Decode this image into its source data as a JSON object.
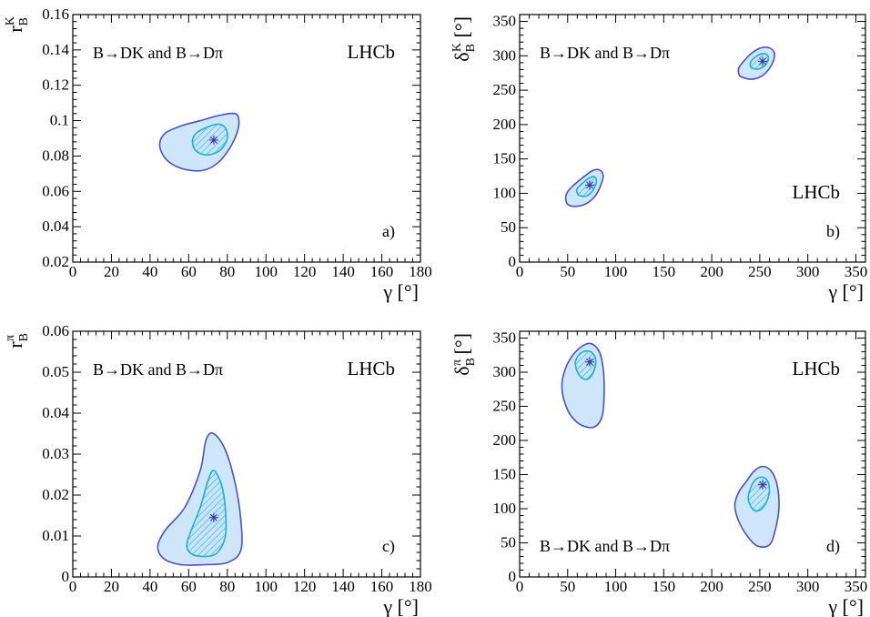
{
  "chart_data": [
    {
      "type": "contour",
      "panel_label": "a)",
      "experiment": "LHCb",
      "annotation": "B→DK and B→Dπ",
      "annotation_pos": "top-left",
      "lhcb_pos": "top-right",
      "xlabel_main": "γ",
      "xlabel_unit": " [°]",
      "ylabel_main": "r",
      "ylabel_sub": "B",
      "ylabel_sup": "K",
      "ylabel_unit": "",
      "xlim": [
        0,
        180
      ],
      "ylim": [
        0.02,
        0.16
      ],
      "xticks": [
        0,
        20,
        40,
        60,
        80,
        100,
        120,
        140,
        160,
        180
      ],
      "xtick_labels": [
        "0",
        "20",
        "40",
        "60",
        "80",
        "100",
        "120",
        "140",
        "160",
        "180"
      ],
      "yticks": [
        0.02,
        0.04,
        0.06,
        0.08,
        0.1,
        0.12,
        0.14,
        0.16
      ],
      "ytick_labels": [
        "0.02",
        "0.04",
        "0.06",
        "0.08",
        "0.1",
        "0.12",
        "0.14",
        "0.16"
      ],
      "best_fit": [
        [
          73,
          0.089
        ]
      ],
      "outer_contours": [
        [
          [
            45,
            0.087
          ],
          [
            47,
            0.08
          ],
          [
            52,
            0.075
          ],
          [
            60,
            0.072
          ],
          [
            68,
            0.072
          ],
          [
            75,
            0.076
          ],
          [
            81,
            0.084
          ],
          [
            85,
            0.093
          ],
          [
            86,
            0.1
          ],
          [
            84,
            0.104
          ],
          [
            76,
            0.103
          ],
          [
            66,
            0.1
          ],
          [
            56,
            0.097
          ],
          [
            48,
            0.093
          ]
        ]
      ],
      "inner_contours": [
        [
          [
            62,
            0.089
          ],
          [
            63,
            0.084
          ],
          [
            67,
            0.081
          ],
          [
            72,
            0.081
          ],
          [
            77,
            0.084
          ],
          [
            80,
            0.09
          ],
          [
            79,
            0.096
          ],
          [
            75,
            0.098
          ],
          [
            69,
            0.096
          ],
          [
            64,
            0.093
          ]
        ]
      ]
    },
    {
      "type": "contour",
      "panel_label": "b)",
      "experiment": "LHCb",
      "annotation": "B→DK and B→Dπ",
      "annotation_pos": "top-left",
      "lhcb_pos": "middle-right",
      "xlabel_main": "γ",
      "xlabel_unit": " [°]",
      "ylabel_main": "δ",
      "ylabel_sub": "B",
      "ylabel_sup": "K",
      "ylabel_unit": " [°]",
      "xlim": [
        0,
        360
      ],
      "ylim": [
        0,
        360
      ],
      "xticks": [
        0,
        50,
        100,
        150,
        200,
        250,
        300,
        350
      ],
      "xtick_labels": [
        "0",
        "50",
        "100",
        "150",
        "200",
        "250",
        "300",
        "350"
      ],
      "yticks": [
        0,
        50,
        100,
        150,
        200,
        250,
        300,
        350
      ],
      "ytick_labels": [
        "0",
        "50",
        "100",
        "150",
        "200",
        "250",
        "300",
        "350"
      ],
      "best_fit": [
        [
          73,
          112
        ],
        [
          253,
          292
        ]
      ],
      "outer_contours": [
        [
          [
            48,
            92
          ],
          [
            50,
            84
          ],
          [
            57,
            81
          ],
          [
            68,
            84
          ],
          [
            78,
            95
          ],
          [
            84,
            110
          ],
          [
            87,
            126
          ],
          [
            83,
            134
          ],
          [
            76,
            133
          ],
          [
            65,
            122
          ],
          [
            54,
            109
          ],
          [
            49,
            100
          ]
        ],
        [
          [
            228,
            275
          ],
          [
            230,
            270
          ],
          [
            240,
            266
          ],
          [
            250,
            269
          ],
          [
            258,
            278
          ],
          [
            264,
            292
          ],
          [
            265,
            305
          ],
          [
            259,
            312
          ],
          [
            250,
            311
          ],
          [
            240,
            302
          ],
          [
            232,
            290
          ],
          [
            228,
            282
          ]
        ]
      ],
      "inner_contours": [
        [
          [
            60,
            100
          ],
          [
            64,
            96
          ],
          [
            71,
            97
          ],
          [
            77,
            106
          ],
          [
            80,
            117
          ],
          [
            78,
            124
          ],
          [
            72,
            122
          ],
          [
            65,
            114
          ],
          [
            60,
            107
          ]
        ],
        [
          [
            240,
            286
          ],
          [
            242,
            282
          ],
          [
            249,
            281
          ],
          [
            256,
            287
          ],
          [
            259,
            296
          ],
          [
            257,
            302
          ],
          [
            252,
            303
          ],
          [
            245,
            298
          ],
          [
            241,
            292
          ]
        ]
      ]
    },
    {
      "type": "contour",
      "panel_label": "c)",
      "experiment": "LHCb",
      "annotation": "B→DK and B→Dπ",
      "annotation_pos": "top-left",
      "lhcb_pos": "top-right",
      "xlabel_main": "γ",
      "xlabel_unit": " [°]",
      "ylabel_main": "r",
      "ylabel_sub": "B",
      "ylabel_sup": "π",
      "ylabel_unit": "",
      "xlim": [
        0,
        180
      ],
      "ylim": [
        0,
        0.06
      ],
      "xticks": [
        0,
        20,
        40,
        60,
        80,
        100,
        120,
        140,
        160,
        180
      ],
      "xtick_labels": [
        "0",
        "20",
        "40",
        "60",
        "80",
        "100",
        "120",
        "140",
        "160",
        "180"
      ],
      "yticks": [
        0,
        0.01,
        0.02,
        0.03,
        0.04,
        0.05,
        0.06
      ],
      "ytick_labels": [
        "0",
        "0.01",
        "0.02",
        "0.03",
        "0.04",
        "0.05",
        "0.06"
      ],
      "best_fit": [
        [
          73,
          0.0145
        ]
      ],
      "outer_contours": [
        [
          [
            44,
            0.0075
          ],
          [
            47,
            0.0045
          ],
          [
            56,
            0.003
          ],
          [
            68,
            0.003
          ],
          [
            80,
            0.0035
          ],
          [
            87,
            0.0065
          ],
          [
            87,
            0.014
          ],
          [
            84,
            0.023
          ],
          [
            79,
            0.031
          ],
          [
            73,
            0.035
          ],
          [
            69,
            0.0335
          ],
          [
            66,
            0.026
          ],
          [
            58,
            0.017
          ],
          [
            48,
            0.0115
          ]
        ]
      ],
      "inner_contours": [
        [
          [
            59,
            0.0075
          ],
          [
            62,
            0.0055
          ],
          [
            69,
            0.005
          ],
          [
            75,
            0.006
          ],
          [
            79,
            0.01
          ],
          [
            79,
            0.0165
          ],
          [
            77,
            0.0225
          ],
          [
            73,
            0.026
          ],
          [
            70,
            0.0235
          ],
          [
            66,
            0.017
          ],
          [
            61,
            0.011
          ]
        ]
      ]
    },
    {
      "type": "contour",
      "panel_label": "d)",
      "experiment": "LHCb",
      "annotation": "B→DK and B→Dπ",
      "annotation_pos": "bottom-left",
      "lhcb_pos": "top-right",
      "xlabel_main": "γ",
      "xlabel_unit": " [°]",
      "ylabel_main": "δ",
      "ylabel_sub": "B",
      "ylabel_sup": "π",
      "ylabel_unit": " [°]",
      "xlim": [
        0,
        360
      ],
      "ylim": [
        0,
        360
      ],
      "xticks": [
        0,
        50,
        100,
        150,
        200,
        250,
        300,
        350
      ],
      "xtick_labels": [
        "0",
        "50",
        "100",
        "150",
        "200",
        "250",
        "300",
        "350"
      ],
      "yticks": [
        0,
        50,
        100,
        150,
        200,
        250,
        300,
        350
      ],
      "ytick_labels": [
        "0",
        "50",
        "100",
        "150",
        "200",
        "250",
        "300",
        "350"
      ],
      "best_fit": [
        [
          73,
          315
        ],
        [
          253,
          135
        ]
      ],
      "outer_contours": [
        [
          [
            44,
            280
          ],
          [
            46,
            260
          ],
          [
            53,
            237
          ],
          [
            65,
            222
          ],
          [
            78,
            220
          ],
          [
            86,
            236
          ],
          [
            88,
            270
          ],
          [
            87,
            305
          ],
          [
            83,
            330
          ],
          [
            74,
            342
          ],
          [
            63,
            336
          ],
          [
            52,
            318
          ],
          [
            46,
            298
          ]
        ],
        [
          [
            224,
            105
          ],
          [
            228,
            82
          ],
          [
            238,
            58
          ],
          [
            248,
            45
          ],
          [
            260,
            47
          ],
          [
            266,
            68
          ],
          [
            270,
            102
          ],
          [
            268,
            135
          ],
          [
            262,
            155
          ],
          [
            253,
            162
          ],
          [
            244,
            155
          ],
          [
            236,
            140
          ],
          [
            228,
            124
          ]
        ]
      ],
      "inner_contours": [
        [
          [
            58,
            312
          ],
          [
            61,
            298
          ],
          [
            67,
            290
          ],
          [
            73,
            292
          ],
          [
            78,
            305
          ],
          [
            79,
            320
          ],
          [
            74,
            330
          ],
          [
            66,
            330
          ],
          [
            60,
            322
          ]
        ],
        [
          [
            238,
            118
          ],
          [
            240,
            105
          ],
          [
            245,
            97
          ],
          [
            252,
            100
          ],
          [
            258,
            113
          ],
          [
            260,
            130
          ],
          [
            257,
            143
          ],
          [
            250,
            146
          ],
          [
            243,
            138
          ]
        ]
      ]
    }
  ]
}
